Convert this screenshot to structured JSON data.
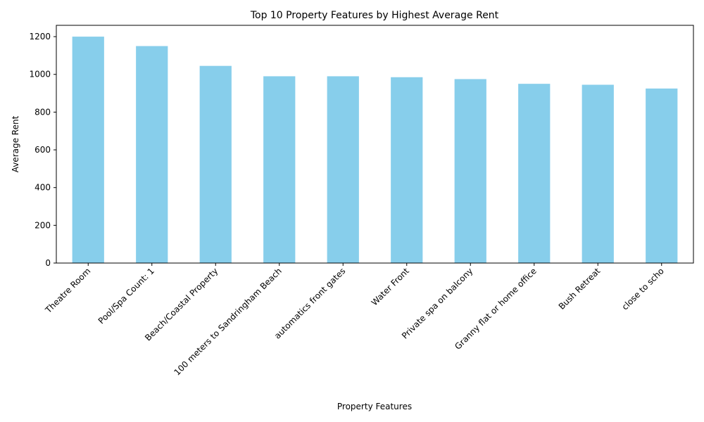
{
  "chart_data": {
    "type": "bar",
    "title": "Top 10 Property Features by Highest Average Rent",
    "xlabel": "Property Features",
    "ylabel": "Average Rent",
    "categories": [
      "Theatre Room",
      "Pool/Spa Count: 1",
      "Beach/Coastal Property",
      "100 meters to Sandringham Beach",
      "automatics front gates",
      "Water Front",
      "Private spa on balcony",
      "Granny flat or home office",
      "Bush Retreat",
      "close to scho"
    ],
    "values": [
      1200,
      1150,
      1045,
      990,
      990,
      985,
      975,
      950,
      945,
      925
    ],
    "ylim": [
      0,
      1260
    ],
    "yticks": [
      0,
      200,
      400,
      600,
      800,
      1000,
      1200
    ],
    "grid": false,
    "bar_color": "#87ceeb"
  }
}
